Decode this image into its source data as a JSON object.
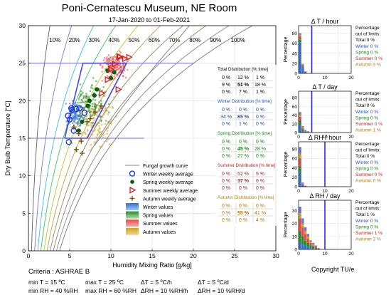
{
  "title": "Poni-Cernatescu Museum, NE Room",
  "subtitle": "17-Jan-2020 to 01-Feb-2021",
  "chart_data": {
    "type": "scatter",
    "xlabel": "Humidity Mixing Ratio [g/kg]",
    "ylabel": "Dry Bulb Temperature [°C]",
    "xlim": [
      0,
      30
    ],
    "ylim": [
      0,
      30
    ],
    "xticks": [
      0,
      5,
      10,
      15,
      20,
      25,
      30
    ],
    "yticks": [
      0,
      5,
      10,
      15,
      20,
      25,
      30
    ],
    "grid": true,
    "rh_curves": [
      {
        "label": "10%",
        "rh": 0.1,
        "color": "#606060"
      },
      {
        "label": "20%",
        "rh": 0.2,
        "color": "#7878d8"
      },
      {
        "label": "30%",
        "rh": 0.3,
        "color": "#3cc0d8"
      },
      {
        "label": "40%",
        "rh": 0.4,
        "color": "#40c060"
      },
      {
        "label": "50%",
        "rh": 0.5,
        "color": "#a8d030"
      },
      {
        "label": "60%",
        "rh": 0.6,
        "color": "#c8a040"
      },
      {
        "label": "70%",
        "rh": 0.7,
        "color": "#a08060"
      },
      {
        "label": "80%",
        "rh": 0.8,
        "color": "#908070"
      },
      {
        "label": "90%",
        "rh": 0.9,
        "color": "#888888"
      },
      {
        "label": "100%",
        "rh": 1.0,
        "color": "#777777"
      }
    ],
    "fungal_curve": [
      [
        8.0,
        14
      ],
      [
        9.3,
        16
      ],
      [
        10.6,
        18
      ],
      [
        12.0,
        20
      ],
      [
        13.4,
        22
      ],
      [
        14.9,
        24
      ],
      [
        16.4,
        26
      ],
      [
        18.0,
        28
      ],
      [
        19.5,
        30
      ]
    ],
    "target_zone": [
      [
        4.4,
        15
      ],
      [
        7.1,
        15
      ],
      [
        11.9,
        25
      ],
      [
        6.6,
        25
      ],
      [
        4.4,
        15
      ]
    ],
    "limit_lines": {
      "t_min": 15,
      "t_max": 25
    },
    "clouds": [
      {
        "name": "Winter values",
        "color": "#3070d0",
        "center": [
          5.7,
          18.2
        ],
        "spread": [
          0.9,
          1.3
        ],
        "n": 110
      },
      {
        "name": "Spring values",
        "color": "#2a8a2a",
        "center": [
          7.6,
          19.5
        ],
        "spread": [
          1.5,
          2.4
        ],
        "n": 140
      },
      {
        "name": "Summer values",
        "color": "#e64a4a",
        "center": [
          10.4,
          24.6
        ],
        "spread": [
          1.2,
          1.4
        ],
        "n": 170
      },
      {
        "name": "Autumn values",
        "color": "#d0a020",
        "center": [
          8.0,
          17.0
        ],
        "spread": [
          2.0,
          3.2
        ],
        "n": 120
      }
    ],
    "weekly": {
      "winter": [
        [
          4.8,
          18
        ],
        [
          5.0,
          17.5
        ],
        [
          5.3,
          18.8
        ],
        [
          5.8,
          18.9
        ],
        [
          6.2,
          19
        ],
        [
          4.9,
          14.5
        ],
        [
          5.5,
          16
        ],
        [
          6.8,
          18.4
        ],
        [
          5.2,
          19.0
        ]
      ],
      "spring": [
        [
          7.2,
          19.3
        ],
        [
          8.0,
          20.7
        ],
        [
          8.3,
          21.5
        ],
        [
          9.6,
          24
        ],
        [
          10.4,
          23.8
        ],
        [
          6.5,
          17.2
        ],
        [
          6.1,
          16
        ],
        [
          7.4,
          20
        ],
        [
          10.0,
          23
        ]
      ],
      "summer": [
        [
          9.6,
          22.8
        ],
        [
          10.5,
          24.9
        ],
        [
          11.1,
          25.8
        ],
        [
          11.7,
          25.6
        ],
        [
          10.0,
          24.2
        ],
        [
          11.0,
          25.9
        ],
        [
          12.2,
          25.8
        ],
        [
          10.9,
          21.5
        ],
        [
          8.9,
          21.0
        ]
      ],
      "autumn": [
        [
          5.5,
          16.5
        ],
        [
          6.4,
          14.6
        ],
        [
          6.1,
          15.6
        ],
        [
          7.1,
          17.2
        ],
        [
          8.1,
          18.5
        ],
        [
          8.8,
          19.3
        ],
        [
          6.5,
          13
        ],
        [
          5.8,
          13.5
        ],
        [
          7.5,
          17.6
        ]
      ]
    },
    "legend": {
      "labels": [
        "Fungal growth curve",
        "Winter weekly average",
        "Spring weekly average",
        "Summer weekly average",
        "Autumn weekly average",
        "Winter values",
        "Spring values",
        "Summer values",
        "Autumn values"
      ]
    },
    "distributions": [
      {
        "title": "Total Distribution [% time]",
        "color": "#000000",
        "rows": [
          [
            "0 %",
            "12 %",
            "1 %"
          ],
          [
            "9 %",
            "51 %",
            "18 %"
          ],
          [
            "0 %",
            "7 %",
            "1 %"
          ]
        ]
      },
      {
        "title": "Winter Distribution [% time]",
        "color": "#2050c0",
        "rows": [
          [
            "0 %",
            "0 %",
            "0 %"
          ],
          [
            "34 %",
            "65 %",
            "0 %"
          ],
          [
            "0 %",
            "1 %",
            "0 %"
          ]
        ]
      },
      {
        "title": "Spring Distribution [% time]",
        "color": "#208020",
        "rows": [
          [
            "0 %",
            "0 %",
            "0 %"
          ],
          [
            "0 %",
            "45 %",
            "28 %"
          ],
          [
            "0 %",
            "27 %",
            "0 %"
          ]
        ]
      },
      {
        "title": "Summer Distribution [% time]",
        "color": "#c02020",
        "rows": [
          [
            "0 %",
            "52 %",
            "5 %"
          ],
          [
            "0 %",
            "37 %",
            "6 %"
          ],
          [
            "0 %",
            "0 %",
            "0 %"
          ]
        ]
      },
      {
        "title": "Autumn Distribution [% time]",
        "color": "#b07818",
        "rows": [
          [
            "0 %",
            "0 %",
            "0 %"
          ],
          [
            "0 %",
            "55 %",
            "41 %"
          ],
          [
            "0 %",
            "0 %",
            "4 %"
          ]
        ]
      }
    ],
    "panels": [
      {
        "title": "Δ T / hour",
        "ylabel": "Percentage",
        "yticks": [
          0,
          20,
          40,
          60,
          80
        ],
        "ymax": 95,
        "xticks": [
          0,
          10,
          20
        ],
        "xmax": 20,
        "limit": 5,
        "stacks": [
          [
            [
              62,
              5,
              6,
              4,
              3
            ],
            [
              0,
              0,
              0,
              0,
              0
            ]
          ],
          [
            [
              14,
              1,
              2,
              1,
              1
            ]
          ],
          [
            [
              3,
              0,
              1,
              0,
              0
            ]
          ]
        ],
        "stats": [
          {
            "t": "Percentage",
            "c": "#000"
          },
          {
            "t": "out of limits:",
            "c": "#000"
          },
          {
            "t": "Total 0 %",
            "c": "#000"
          },
          {
            "t": "Winter 0 %",
            "c": "#2050c0"
          },
          {
            "t": "Spring 0 %",
            "c": "#208020"
          },
          {
            "t": "Summer 0 %",
            "c": "#c02020"
          },
          {
            "t": "Autumn 0 %",
            "c": "#b07818"
          }
        ]
      },
      {
        "title": "Δ T / day",
        "ylabel": "Percentage",
        "yticks": [
          0,
          20,
          40,
          60,
          80
        ],
        "ymax": 95,
        "xticks": [
          0,
          10,
          20
        ],
        "xmax": 20,
        "limit": 5,
        "stacks": [
          [
            [
              18,
              10,
              8,
              5,
              6
            ]
          ],
          [
            [
              5,
              3,
              3,
              2,
              2
            ]
          ],
          [
            [
              2,
              1,
              1,
              1,
              1
            ]
          ],
          [
            [
              1,
              1,
              0,
              0,
              1
            ]
          ]
        ],
        "stats": [
          {
            "t": "Percentage",
            "c": "#000"
          },
          {
            "t": "out of limits:",
            "c": "#000"
          },
          {
            "t": "Total 0 %",
            "c": "#000"
          },
          {
            "t": "Winter 0 %",
            "c": "#2050c0"
          },
          {
            "t": "Spring 0 %",
            "c": "#208020"
          },
          {
            "t": "Summer 0 %",
            "c": "#c02020"
          },
          {
            "t": "Autumn 1 %",
            "c": "#b07818"
          }
        ]
      },
      {
        "title": "Δ RH / hour",
        "ylabel": "Percentage",
        "yticks": [
          0,
          20,
          40,
          60,
          80
        ],
        "ymax": 95,
        "xticks": [
          0,
          10,
          20
        ],
        "xmax": 20,
        "limit": 10,
        "stacks": [
          [
            [
              30,
              12,
              18,
              10,
              14
            ]
          ],
          [
            [
              4,
              1,
              2,
              1,
              1
            ]
          ],
          [
            [
              1,
              0,
              1,
              0,
              0
            ]
          ]
        ],
        "stats": [
          {
            "t": "Percentage",
            "c": "#000"
          },
          {
            "t": "out of limits:",
            "c": "#000"
          },
          {
            "t": "Total 0 %",
            "c": "#000"
          },
          {
            "t": "Winter 0 %",
            "c": "#2050c0"
          },
          {
            "t": "Spring 0 %",
            "c": "#208020"
          },
          {
            "t": "Summer 0 %",
            "c": "#c02020"
          },
          {
            "t": "Autumn 0 %",
            "c": "#b07818"
          }
        ]
      },
      {
        "title": "Δ RH / day",
        "ylabel": "Percentage",
        "yticks": [
          0,
          10,
          20,
          30
        ],
        "ymax": 38,
        "xticks": [
          0,
          10,
          20
        ],
        "xmax": 20,
        "limit": 10,
        "stacks": [
          [
            [
              6,
              8,
              10,
              4,
              5
            ]
          ],
          [
            [
              4,
              6,
              7,
              3,
              4
            ]
          ],
          [
            [
              3,
              4,
              5,
              2,
              3
            ]
          ],
          [
            [
              2,
              3,
              3,
              2,
              2
            ]
          ],
          [
            [
              1,
              2,
              2,
              1,
              1
            ]
          ],
          [
            [
              1,
              1,
              1,
              1,
              1
            ]
          ],
          [
            [
              0,
              1,
              1,
              0,
              1
            ]
          ],
          [
            [
              0,
              0,
              1,
              0,
              0
            ]
          ]
        ],
        "stats": [
          {
            "t": "Percentage",
            "c": "#000"
          },
          {
            "t": "out of limits:",
            "c": "#000"
          },
          {
            "t": "Total 1 %",
            "c": "#000"
          },
          {
            "t": "Winter 0 %",
            "c": "#2050c0"
          },
          {
            "t": "Spring 0 %",
            "c": "#208020"
          },
          {
            "t": "Summer 1 %",
            "c": "#c02020"
          },
          {
            "t": "Autumn 2 %",
            "c": "#b07818"
          }
        ]
      }
    ],
    "stack_colors": [
      "#3070d0",
      "#2a8a2a",
      "#e64a4a",
      "#d0a020",
      "#7070d0"
    ]
  },
  "criteria": {
    "label": "Criteria : ASHRAE B",
    "min_t": "min T = 15 ºC",
    "max_t": "max T = 25 ºC",
    "dt_h": "ΔT = 5 ºC/h",
    "dt_d": "ΔT = 5 ºC/d",
    "min_rh": "min RH = 40 %RH",
    "max_rh": "max RH = 60 %RH",
    "drh_h": "ΔRH = 10 %RH/h",
    "drh_d": "ΔRH = 10 %RH/d"
  },
  "copyright": "Copyright TU/e"
}
